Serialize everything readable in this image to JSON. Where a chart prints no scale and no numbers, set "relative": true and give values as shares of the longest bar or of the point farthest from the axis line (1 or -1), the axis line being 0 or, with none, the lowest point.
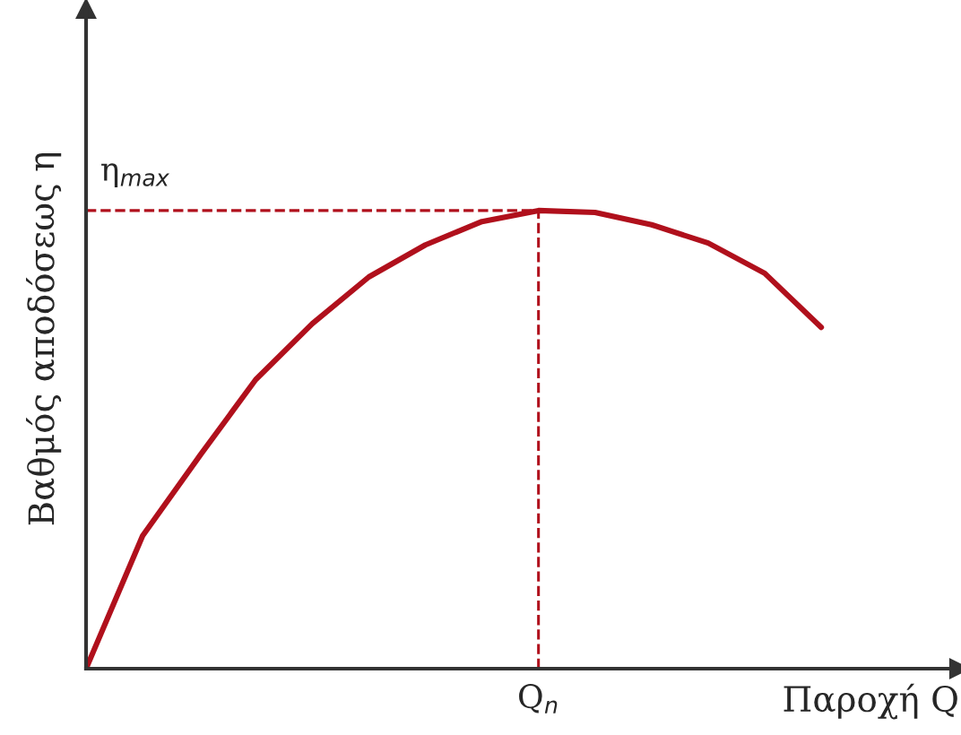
{
  "chart_data": {
    "type": "line",
    "relative": true,
    "xlabel": "Παροχή Q",
    "ylabel": "Βαθμός αποδόσεως η",
    "categories": [
      null,
      null,
      null,
      null,
      null,
      null,
      null,
      null,
      null,
      null,
      null,
      null,
      null,
      null
    ],
    "series": [
      {
        "color": "#b0101c",
        "values": [
          0,
          0.29,
          0.463,
          0.631,
          0.753,
          0.855,
          0.925,
          0.976,
          1,
          0.996,
          0.969,
          0.929,
          0.863,
          0.745
        ]
      }
    ],
    "ref_lines": [
      {
        "axis": "y",
        "value": 1,
        "label": "η$_{max}$",
        "color": "#b0101c",
        "line_style": "dashed"
      }
    ],
    "annotations": [
      "Q$_{n}$"
    ],
    "legend": false,
    "marker": "none",
    "line_style": "solid"
  }
}
